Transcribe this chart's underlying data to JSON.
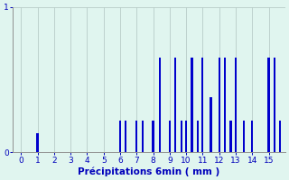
{
  "xlabel": "Précipitations 6min ( mm )",
  "background_color": "#e0f5ef",
  "bar_color": "#0000cc",
  "grid_color": "#b8ccc8",
  "text_color": "#0000bb",
  "spine_color": "#909090",
  "ylim": [
    0,
    1.0
  ],
  "xlim": [
    -0.5,
    16.0
  ],
  "yticks": [
    0,
    1
  ],
  "xticks": [
    0,
    1,
    2,
    3,
    4,
    5,
    6,
    7,
    8,
    9,
    10,
    11,
    12,
    13,
    14,
    15
  ],
  "bar_width": 0.12,
  "bars_x": [
    1.0,
    6.0,
    6.35,
    7.0,
    7.35,
    8.0,
    8.4,
    9.0,
    9.35,
    9.7,
    10.0,
    10.35,
    10.7,
    11.0,
    11.5,
    12.0,
    12.35,
    12.7,
    13.0,
    13.5,
    14.0,
    15.0,
    15.35,
    15.7
  ],
  "bars_h": [
    0.13,
    0.22,
    0.22,
    0.22,
    0.22,
    0.22,
    0.65,
    0.22,
    0.65,
    0.22,
    0.22,
    0.65,
    0.22,
    0.65,
    0.38,
    0.65,
    0.65,
    0.22,
    0.65,
    0.22,
    0.22,
    0.65,
    0.65,
    0.22
  ]
}
